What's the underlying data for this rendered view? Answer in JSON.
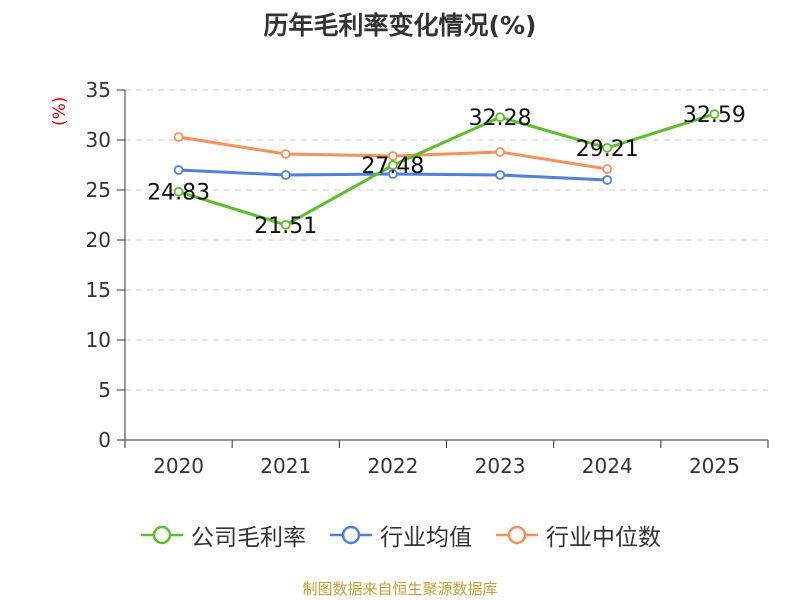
{
  "chart_data": {
    "type": "line",
    "title": "历年毛利率变化情况(%)",
    "ylabel": "(%)",
    "xlabel": "",
    "categories": [
      "2020",
      "2021",
      "2022",
      "2023",
      "2024",
      "2025"
    ],
    "ylim": [
      0,
      35
    ],
    "yticks": [
      0,
      5,
      10,
      15,
      20,
      25,
      30,
      35
    ],
    "grid": true,
    "legend_position": "bottom",
    "series": [
      {
        "name": "公司毛利率",
        "color": "#5cbf2a",
        "values": [
          24.83,
          21.51,
          27.48,
          32.28,
          29.21,
          32.59
        ],
        "show_labels": true
      },
      {
        "name": "行业均值",
        "color": "#4f7fe0",
        "values": [
          27.0,
          26.5,
          26.6,
          26.5,
          26.0,
          null
        ],
        "show_labels": false
      },
      {
        "name": "行业中位数",
        "color": "#f7905a",
        "values": [
          30.3,
          28.6,
          28.4,
          28.8,
          27.1,
          null
        ],
        "show_labels": false
      }
    ]
  },
  "source_text": "制图数据来自恒生聚源数据库"
}
